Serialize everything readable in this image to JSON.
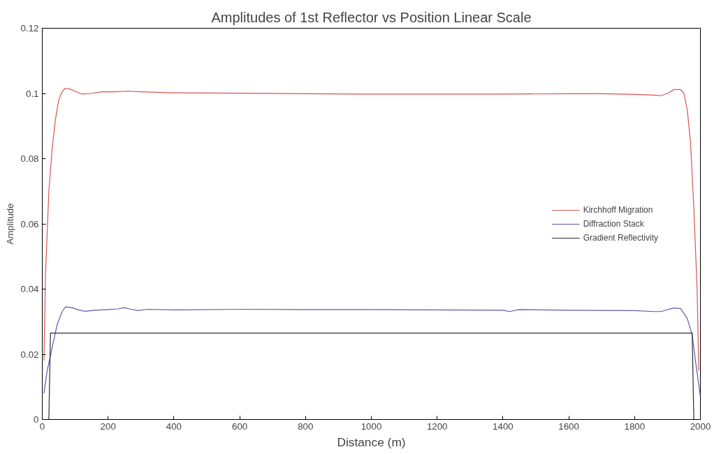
{
  "chart_data": {
    "type": "line",
    "title": "Amplitudes of 1st Reflector vs Position Linear Scale",
    "xlabel": "Distance (m)",
    "ylabel": "Amplitude",
    "xlim": [
      0,
      2000
    ],
    "ylim": [
      0,
      0.12
    ],
    "xticks": [
      0,
      200,
      400,
      600,
      800,
      1000,
      1200,
      1400,
      1600,
      1800,
      2000
    ],
    "yticks": [
      0,
      0.02,
      0.04,
      0.06,
      0.08,
      0.1,
      0.12
    ],
    "grid": false,
    "legend": "right",
    "line_style": "solid",
    "marker": "none",
    "series": [
      {
        "name": "Kirchhoff Migration",
        "color": "#d9534f",
        "x": [
          5,
          10,
          20,
          30,
          40,
          50,
          60,
          70,
          85,
          100,
          120,
          150,
          180,
          220,
          260,
          300,
          400,
          600,
          800,
          1000,
          1200,
          1400,
          1600,
          1700,
          1800,
          1860,
          1880,
          1900,
          1920,
          1940,
          1950,
          1960,
          1970,
          1980,
          1990,
          1995
        ],
        "values": [
          0.018,
          0.045,
          0.07,
          0.083,
          0.092,
          0.098,
          0.1005,
          0.1016,
          0.1013,
          0.1007,
          0.0998,
          0.1,
          0.1005,
          0.1005,
          0.1007,
          0.1005,
          0.1002,
          0.1001,
          0.0999,
          0.0998,
          0.0998,
          0.0998,
          0.0999,
          0.0999,
          0.0997,
          0.0995,
          0.0993,
          0.1,
          0.1012,
          0.1012,
          0.1,
          0.095,
          0.085,
          0.065,
          0.04,
          0.015
        ]
      },
      {
        "name": "Diffraction Stack",
        "color": "#5a5aae",
        "x": [
          5,
          15,
          30,
          45,
          60,
          70,
          90,
          110,
          130,
          160,
          200,
          230,
          250,
          270,
          290,
          320,
          400,
          600,
          800,
          1000,
          1200,
          1400,
          1420,
          1450,
          1600,
          1800,
          1860,
          1880,
          1900,
          1920,
          1940,
          1960,
          1975,
          1985,
          2000
        ],
        "values": [
          0.008,
          0.015,
          0.022,
          0.029,
          0.033,
          0.0345,
          0.0343,
          0.0336,
          0.0332,
          0.0335,
          0.0337,
          0.0339,
          0.0343,
          0.0338,
          0.0334,
          0.0338,
          0.0336,
          0.0338,
          0.0337,
          0.0337,
          0.0336,
          0.0335,
          0.0331,
          0.0337,
          0.0335,
          0.0334,
          0.0331,
          0.0331,
          0.0337,
          0.0342,
          0.034,
          0.031,
          0.026,
          0.018,
          0.007
        ]
      },
      {
        "name": "Gradient Reflectivity",
        "color": "#2b2b3a",
        "x": [
          20,
          25,
          1975,
          1980
        ],
        "values": [
          0,
          0.0265,
          0.0265,
          0
        ]
      }
    ]
  }
}
